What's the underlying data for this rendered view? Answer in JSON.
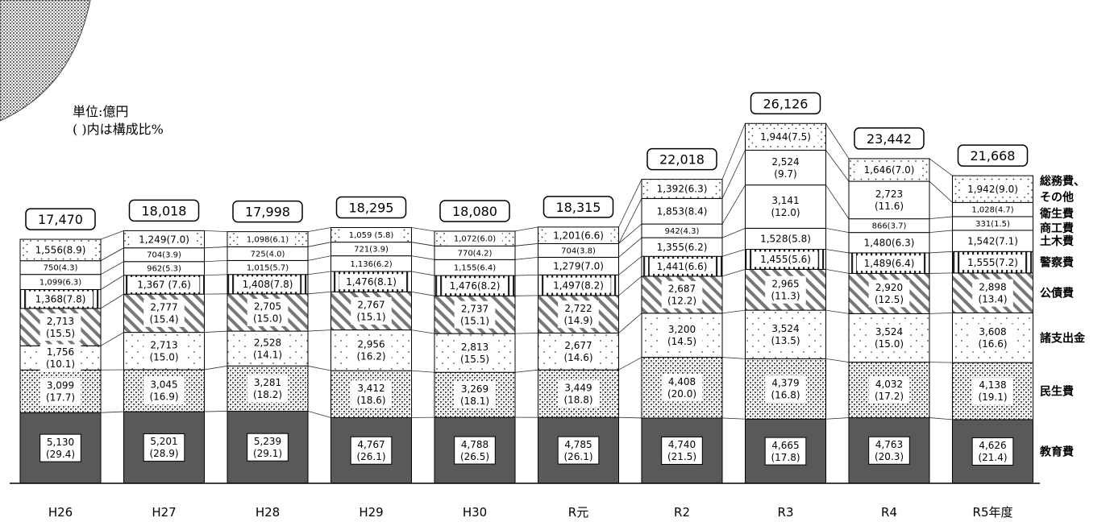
{
  "unit_label": "単位:億円",
  "ratio_note": "( )内は構成比%",
  "chart_data": {
    "type": "bar",
    "stacked": true,
    "categories": [
      "H26",
      "H27",
      "H28",
      "H29",
      "H30",
      "R元",
      "R2",
      "R3",
      "R4",
      "R5年度"
    ],
    "totals": [
      "17,470",
      "18,018",
      "17,998",
      "18,295",
      "18,080",
      "18,315",
      "22,018",
      "26,126",
      "23,442",
      "21,668"
    ],
    "series": [
      {
        "name": "教育費",
        "pattern": "dark",
        "values": [
          5130,
          5201,
          5239,
          4767,
          4788,
          4785,
          4740,
          4665,
          4763,
          4626
        ],
        "labels": [
          "5,130\n(29.4)",
          "5,201\n(28.9)",
          "5,239\n(29.1)",
          "4,767\n(26.1)",
          "4,788\n(26.5)",
          "4,785\n(26.1)",
          "4,740\n(21.5)",
          "4,665\n(17.8)",
          "4,763\n(20.3)",
          "4,626\n(21.4)"
        ]
      },
      {
        "name": "民生費",
        "pattern": "dense",
        "values": [
          3099,
          3045,
          3281,
          3412,
          3269,
          3449,
          4408,
          4379,
          4032,
          4138
        ],
        "labels": [
          "3,099\n(17.7)",
          "3,045\n(16.9)",
          "3,281\n(18.2)",
          "3,412\n(18.6)",
          "3,269\n(18.1)",
          "3,449\n(18.8)",
          "4,408\n(20.0)",
          "4,379\n(16.8)",
          "4,032\n(17.2)",
          "4,138\n(19.1)"
        ]
      },
      {
        "name": "諸支出金",
        "pattern": "sparse",
        "values": [
          1756,
          2713,
          2528,
          2956,
          2813,
          2677,
          3200,
          3524,
          3524,
          3608
        ],
        "labels": [
          "1,756\n(10.1)",
          "2,713\n(15.0)",
          "2,528\n(14.1)",
          "2,956\n(16.2)",
          "2,813\n(15.5)",
          "2,677\n(14.6)",
          "3,200\n(14.5)",
          "3,524\n(13.5)",
          "3,524\n(15.0)",
          "3,608\n(16.6)"
        ]
      },
      {
        "name": "公債費",
        "pattern": "diag",
        "values": [
          2713,
          2777,
          2705,
          2767,
          2737,
          2722,
          2687,
          2965,
          2920,
          2898
        ],
        "labels": [
          "2,713\n(15.5)",
          "2,777\n(15.4)",
          "2,705\n(15.0)",
          "2,767\n(15.1)",
          "2,737\n(15.1)",
          "2,722\n(14.9)",
          "2,687\n(12.2)",
          "2,965\n(11.3)",
          "2,920\n(12.5)",
          "2,898\n(13.4)"
        ]
      },
      {
        "name": "警察費",
        "pattern": "vert",
        "values": [
          1368,
          1367,
          1408,
          1476,
          1476,
          1497,
          1441,
          1455,
          1489,
          1555
        ],
        "labels": [
          "1,368(7.8)",
          "1,367 (7.6)",
          "1,408(7.8)",
          "1,476(8.1)",
          "1,476(8.2)",
          "1,497(8.2)",
          "1,441(6.6)",
          "1,455(5.6)",
          "1,489(6.4)",
          "1,555(7.2)"
        ]
      },
      {
        "name": "土木費",
        "pattern": "white",
        "values": [
          1099,
          962,
          1015,
          1136,
          1155,
          1279,
          1355,
          1528,
          1480,
          1542
        ],
        "labels": [
          "1,099(6.3)",
          "962(5.3)",
          "1,015(5.7)",
          "1,136(6.2)",
          "1,155(6.4)",
          "1,279(7.0)",
          "1,355(6.2)",
          "1,528(5.8)",
          "1,480(6.3)",
          "1,542(7.1)"
        ]
      },
      {
        "name": "商工費",
        "pattern": "white",
        "values": [
          750,
          704,
          725,
          721,
          770,
          704,
          942,
          3141,
          866,
          331
        ],
        "labels": [
          "750(4.3)",
          "704(3.9)",
          "725(4.0)",
          "721(3.9)",
          "770(4.2)",
          "704(3.8)",
          "942(4.3)",
          "3,141\n(12.0)",
          "866(3.7)",
          "331(1.5)"
        ]
      },
      {
        "name": "衛生費",
        "pattern": "white",
        "values": [
          0,
          0,
          0,
          0,
          0,
          0,
          1853,
          2524,
          2723,
          1028
        ],
        "labels": [
          "",
          "",
          "",
          "",
          "",
          "",
          "1,853(8.4)",
          "2,524\n(9.7)",
          "2,723\n(11.6)",
          "1,028(4.7)"
        ]
      },
      {
        "name": "総務費、その他",
        "pattern": "dots",
        "values": [
          1556,
          1249,
          1098,
          1059,
          1072,
          1201,
          1392,
          1944,
          1646,
          1942
        ],
        "labels": [
          "1,556(8.9)",
          "1,249(7.0)",
          "1,098(6.1)",
          "1,059 (5.8)",
          "1,072(6.0)",
          "1,201(6.6)",
          "1,392(6.3)",
          "1,944(7.5)",
          "1,646(7.0)",
          "1,942(9.0)"
        ]
      }
    ],
    "legend_labels": [
      "総務費、\nその他",
      "衛生費",
      "商工費",
      "土木費",
      "警察費",
      "公債費",
      "諸支出金",
      "民生費",
      "教育費"
    ],
    "legend": "right"
  }
}
